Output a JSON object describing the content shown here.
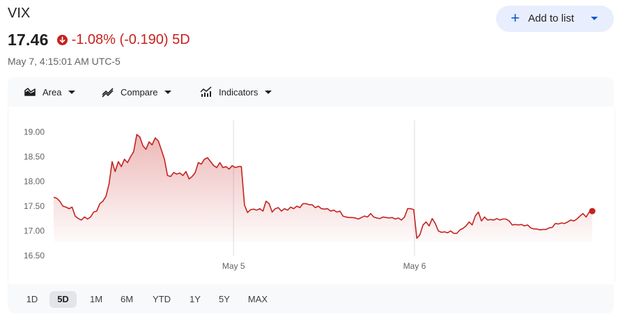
{
  "ticker": "VIX",
  "price": "17.46",
  "change": "-1.08% (-0.190) 5D",
  "timestamp": "May 7, 4:15:01 AM UTC-5",
  "add_button": {
    "label": "Add to list"
  },
  "toolbar": {
    "area_label": "Area",
    "compare_label": "Compare",
    "indicators_label": "Indicators"
  },
  "ranges": [
    "1D",
    "5D",
    "1M",
    "6M",
    "YTD",
    "1Y",
    "5Y",
    "MAX"
  ],
  "active_range": "5D",
  "colors": {
    "down": "#c5221f",
    "accent": "#0b57d0"
  },
  "chart_data": {
    "type": "area",
    "yticks": [
      "19.00",
      "18.50",
      "18.00",
      "17.50",
      "17.00",
      "16.50"
    ],
    "ylim": [
      16.5,
      19.2
    ],
    "xticks": [
      {
        "label": "May 5",
        "t": 0.334
      },
      {
        "label": "May 6",
        "t": 0.67
      }
    ],
    "grid": "vertical lines at date ticks",
    "series": [
      {
        "values": [
          17.68,
          17.66,
          17.6,
          17.5,
          17.48,
          17.45,
          17.48,
          17.3,
          17.25,
          17.22,
          17.28,
          17.24,
          17.28,
          17.38,
          17.4,
          17.55,
          17.6,
          17.7,
          17.95,
          18.4,
          18.2,
          18.4,
          18.3,
          18.45,
          18.38,
          18.5,
          18.6,
          18.95,
          18.9,
          18.72,
          18.65,
          18.8,
          18.74,
          18.88,
          18.82,
          18.64,
          18.45,
          18.12,
          18.1,
          18.18,
          18.15,
          18.17,
          18.12,
          18.2,
          18.05,
          18.1,
          18.18,
          18.38,
          18.35,
          18.45,
          18.48,
          18.4,
          18.32,
          18.28,
          18.38,
          18.28,
          18.3,
          18.25,
          18.32,
          18.28,
          18.3,
          18.3,
          17.52,
          17.37,
          17.43,
          17.44,
          17.42,
          17.45,
          17.4,
          17.6,
          17.55,
          17.38,
          17.45,
          17.47,
          17.4,
          17.45,
          17.42,
          17.48,
          17.45,
          17.5,
          17.47,
          17.55,
          17.55,
          17.53,
          17.53,
          17.47,
          17.5,
          17.45,
          17.44,
          17.45,
          17.4,
          17.42,
          17.38,
          17.4,
          17.3,
          17.28,
          17.27,
          17.27,
          17.26,
          17.24,
          17.27,
          17.3,
          17.28,
          17.35,
          17.28,
          17.26,
          17.25,
          17.28,
          17.27,
          17.26,
          17.27,
          17.24,
          17.26,
          17.22,
          17.28,
          17.45,
          17.45,
          17.43,
          16.85,
          16.92,
          17.12,
          17.18,
          17.1,
          17.25,
          17.15,
          17.0,
          16.97,
          16.98,
          16.96,
          17.0,
          16.95,
          16.95,
          17.02,
          17.05,
          17.1,
          17.18,
          17.12,
          17.3,
          17.38,
          17.2,
          17.28,
          17.22,
          17.23,
          17.22,
          17.25,
          17.22,
          17.24,
          17.24,
          17.2,
          17.12,
          17.13,
          17.12,
          17.13,
          17.1,
          17.12,
          17.06,
          17.04,
          17.04,
          17.02,
          17.03,
          17.03,
          17.06,
          17.07,
          17.15,
          17.14,
          17.16,
          17.15,
          17.18,
          17.22,
          17.2,
          17.24,
          17.3,
          17.35,
          17.28,
          17.38,
          17.4
        ]
      }
    ]
  }
}
